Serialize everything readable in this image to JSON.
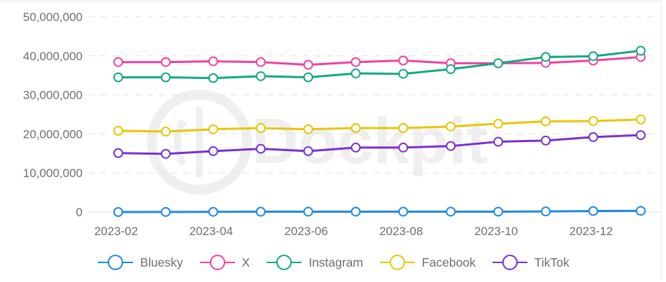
{
  "chart_data": {
    "type": "line",
    "title": "",
    "xlabel": "",
    "ylabel": "",
    "x": [
      "2023-02",
      "2023-03",
      "2023-04",
      "2023-05",
      "2023-06",
      "2023-07",
      "2023-08",
      "2023-09",
      "2023-10",
      "2023-11",
      "2023-12",
      "2024-01"
    ],
    "x_tick_labels": [
      "2023-02",
      "2023-04",
      "2023-06",
      "2023-08",
      "2023-10",
      "2023-12"
    ],
    "y_tick_labels": [
      "0",
      "10,000,000",
      "20,000,000",
      "30,000,000",
      "40,000,000",
      "50,000,000"
    ],
    "ylim": [
      0,
      50000000
    ],
    "grid": true,
    "legend_position": "bottom",
    "series": [
      {
        "name": "Bluesky",
        "color": "#1e88e5",
        "values": [
          0,
          20000,
          50000,
          80000,
          100000,
          100000,
          100000,
          100000,
          100000,
          150000,
          250000,
          300000
        ]
      },
      {
        "name": "X",
        "color": "#f23fa4",
        "values": [
          38400000,
          38400000,
          38600000,
          38400000,
          37700000,
          38400000,
          38800000,
          38100000,
          38100000,
          38200000,
          38800000,
          39700000
        ]
      },
      {
        "name": "Instagram",
        "color": "#13a884",
        "values": [
          34500000,
          34500000,
          34300000,
          34800000,
          34500000,
          35500000,
          35400000,
          36600000,
          38100000,
          39700000,
          39900000,
          41300000
        ]
      },
      {
        "name": "Facebook",
        "color": "#e8c500",
        "values": [
          20800000,
          20600000,
          21200000,
          21500000,
          21200000,
          21500000,
          21500000,
          21900000,
          22600000,
          23200000,
          23300000,
          23700000
        ]
      },
      {
        "name": "TikTok",
        "color": "#7b2fd0",
        "values": [
          15100000,
          14900000,
          15600000,
          16200000,
          15600000,
          16500000,
          16500000,
          16900000,
          18000000,
          18300000,
          19200000,
          19700000
        ]
      }
    ]
  },
  "watermark": {
    "text": "Dockpit"
  },
  "legend": {
    "items": [
      {
        "label": "Bluesky",
        "color": "#1e88e5"
      },
      {
        "label": "X",
        "color": "#f23fa4"
      },
      {
        "label": "Instagram",
        "color": "#13a884"
      },
      {
        "label": "Facebook",
        "color": "#e8c500"
      },
      {
        "label": "TikTok",
        "color": "#7b2fd0"
      }
    ]
  }
}
